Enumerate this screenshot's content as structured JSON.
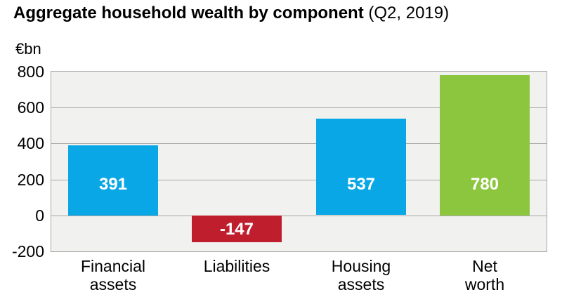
{
  "title": {
    "bold": "Aggregate household wealth by component",
    "suffix": " (Q2, 2019)"
  },
  "chart_data": {
    "type": "bar",
    "title": "Aggregate household wealth by component (Q2, 2019)",
    "unit_label": "€bn",
    "xlabel": "",
    "ylabel": "€bn",
    "categories": [
      "Financial\nassets",
      "Liabilities",
      "Housing\nassets",
      "Net\nworth"
    ],
    "values": [
      391,
      -147,
      537,
      780
    ],
    "bar_labels": [
      "391",
      "-147",
      "537",
      "780"
    ],
    "bar_colors": [
      "#09a7e6",
      "#bf1f2d",
      "#09a7e6",
      "#8cc63f"
    ],
    "ylim": [
      -200,
      800
    ],
    "yticks": [
      800,
      600,
      400,
      200,
      0,
      -200
    ],
    "grid": true,
    "legend": false,
    "plot_background": "#f1f1ef",
    "grid_color": "#a8a8a8",
    "border_color": "#a6a6a6",
    "value_label_color": "#ffffff"
  }
}
